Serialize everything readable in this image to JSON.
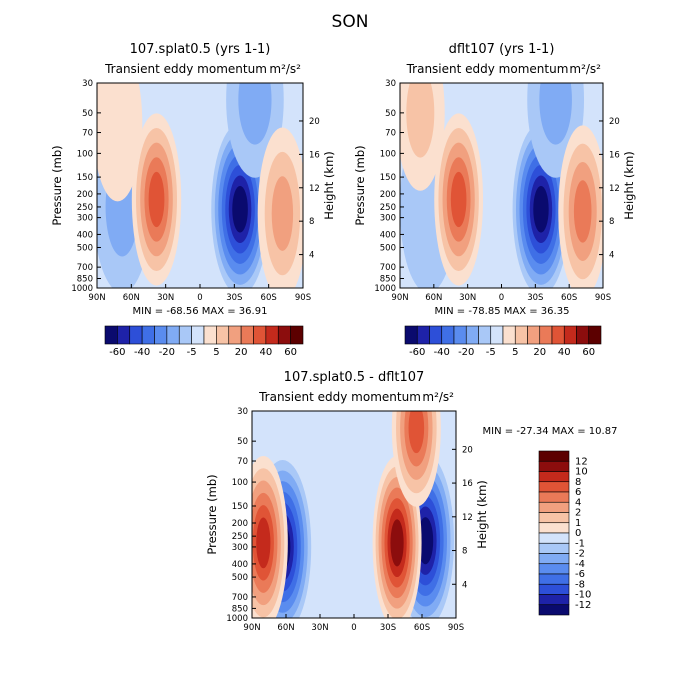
{
  "figure": {
    "title": "SON",
    "field_label": "Transient eddy momentum",
    "units": "m²/s²",
    "pressure_label": "Pressure (mb)",
    "height_label": "Height (km)"
  },
  "chart_data": [
    {
      "type": "heatmap",
      "title": "107.splat0.5 (yrs 1-1)",
      "subtitle": "Transient eddy momentum",
      "units": "m²/s²",
      "xlabel": "",
      "ylabel": "Pressure (mb)",
      "ylabel_right": "Height (km)",
      "x_ticks": [
        "90N",
        "60N",
        "30N",
        "0",
        "30S",
        "60S",
        "90S"
      ],
      "y_ticks": [
        30,
        50,
        70,
        100,
        150,
        200,
        250,
        300,
        400,
        500,
        700,
        850,
        1000
      ],
      "y_right_ticks": [
        4,
        8,
        12,
        16,
        20
      ],
      "min_text": "MIN = -68.56",
      "max_text": "MAX = 36.91",
      "colorbar_levels": [
        -60,
        -50,
        -40,
        -30,
        -20,
        -10,
        -5,
        0,
        5,
        10,
        20,
        30,
        40,
        50,
        60
      ],
      "colorbar_labels": [
        "-60",
        "-40",
        "-20",
        "-5",
        "5",
        "20",
        "40",
        "60"
      ],
      "features": [
        {
          "lat": -35,
          "pressure": 260,
          "value": -68.56
        },
        {
          "lat": -48,
          "pressure": 40,
          "value": -15
        },
        {
          "lat": 68,
          "pressure": 250,
          "value": -12
        },
        {
          "lat": 38,
          "pressure": 220,
          "value": 34
        },
        {
          "lat": -72,
          "pressure": 280,
          "value": 20
        },
        {
          "lat": 72,
          "pressure": 60,
          "value": 4
        }
      ]
    },
    {
      "type": "heatmap",
      "title": "dflt107 (yrs 1-1)",
      "subtitle": "Transient eddy momentum",
      "units": "m²/s²",
      "xlabel": "",
      "ylabel": "Pressure (mb)",
      "ylabel_right": "Height (km)",
      "x_ticks": [
        "90N",
        "60N",
        "30N",
        "0",
        "30S",
        "60S",
        "90S"
      ],
      "y_ticks": [
        30,
        50,
        70,
        100,
        150,
        200,
        250,
        300,
        400,
        500,
        700,
        850,
        1000
      ],
      "y_right_ticks": [
        4,
        8,
        12,
        16,
        20
      ],
      "min_text": "MIN = -78.85",
      "max_text": "MAX = 36.35",
      "colorbar_levels": [
        -60,
        -50,
        -40,
        -30,
        -20,
        -10,
        -5,
        0,
        5,
        10,
        20,
        30,
        40,
        50,
        60
      ],
      "colorbar_labels": [
        "-60",
        "-40",
        "-20",
        "-5",
        "5",
        "20",
        "40",
        "60"
      ],
      "features": [
        {
          "lat": -35,
          "pressure": 260,
          "value": -78.85
        },
        {
          "lat": -48,
          "pressure": 40,
          "value": -15
        },
        {
          "lat": 65,
          "pressure": 250,
          "value": -8
        },
        {
          "lat": 38,
          "pressure": 220,
          "value": 34
        },
        {
          "lat": -72,
          "pressure": 270,
          "value": 22
        },
        {
          "lat": 72,
          "pressure": 50,
          "value": 8
        }
      ]
    },
    {
      "type": "heatmap",
      "title": "107.splat0.5 - dflt107",
      "subtitle": "Transient eddy momentum",
      "units": "m²/s²",
      "xlabel": "",
      "ylabel": "Pressure (mb)",
      "ylabel_right": "Height (km)",
      "x_ticks": [
        "90N",
        "60N",
        "30N",
        "0",
        "30S",
        "60S",
        "90S"
      ],
      "y_ticks": [
        30,
        50,
        70,
        100,
        150,
        200,
        250,
        300,
        400,
        500,
        700,
        850,
        1000
      ],
      "y_right_ticks": [
        4,
        8,
        12,
        16,
        20
      ],
      "min_text": "MIN = -27.34",
      "max_text": "MAX =  10.87",
      "colorbar_levels": [
        -12,
        -10,
        -8,
        -6,
        -4,
        -2,
        -1,
        0,
        1,
        2,
        4,
        6,
        8,
        10,
        12
      ],
      "colorbar_labels": [
        "12",
        "10",
        "8",
        "6",
        "4",
        "2",
        "1",
        "0",
        "-1",
        "-2",
        "-4",
        "-6",
        "-8",
        "-10",
        "-12"
      ],
      "features": [
        {
          "lat": 63,
          "pressure": 300,
          "value": -27.34
        },
        {
          "lat": -63,
          "pressure": 270,
          "value": -18
        },
        {
          "lat": 80,
          "pressure": 280,
          "value": 9
        },
        {
          "lat": -38,
          "pressure": 280,
          "value": 10.87
        },
        {
          "lat": -55,
          "pressure": 40,
          "value": 8
        }
      ]
    }
  ],
  "palette": {
    "diverging": [
      "#0a0a6e",
      "#1e22a8",
      "#2d4fd8",
      "#3f6fe6",
      "#5a8cef",
      "#80abf4",
      "#a9c8f7",
      "#d3e3fb",
      "#fbe0cf",
      "#f7c3a6",
      "#f1a07f",
      "#ea7a58",
      "#e05436",
      "#c42a1c",
      "#8c0d0d",
      "#5c0000"
    ]
  }
}
